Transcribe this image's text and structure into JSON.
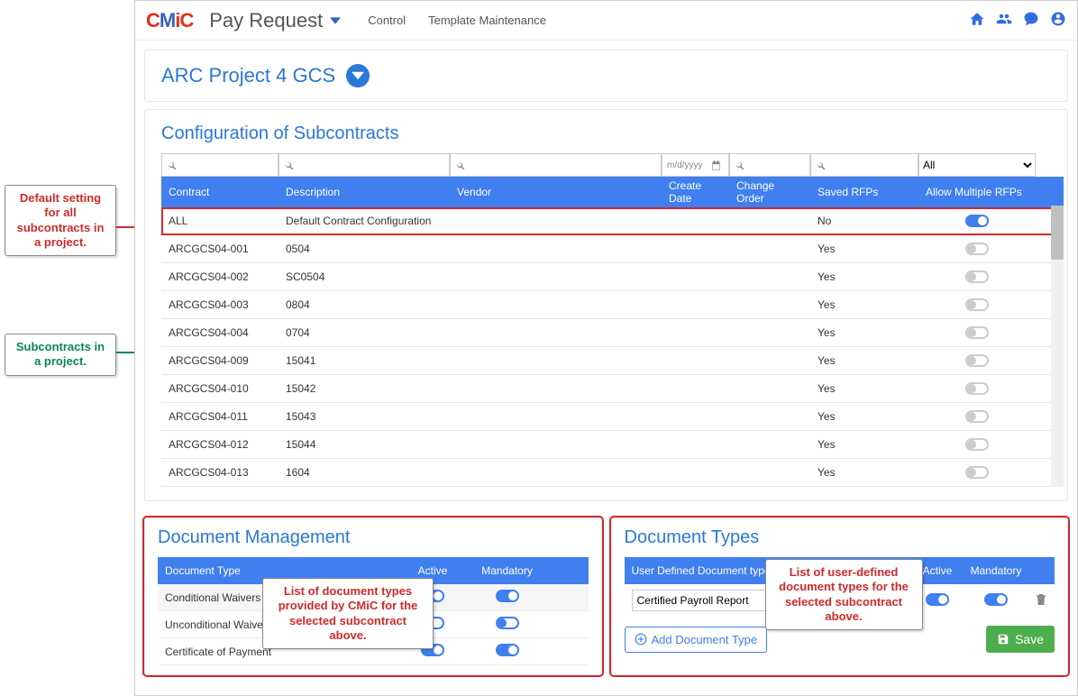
{
  "header": {
    "logo": "CMiC",
    "title": "Pay Request",
    "nav": {
      "control": "Control",
      "template": "Template Maintenance"
    }
  },
  "project": {
    "name": "ARC Project 4 GCS"
  },
  "config": {
    "title": "Configuration of Subcontracts",
    "columns": {
      "contract": "Contract",
      "description": "Description",
      "vendor": "Vendor",
      "createDate": "Create Date",
      "changeOrder": "Change Order",
      "savedRfps": "Saved RFPs",
      "allowMultiple": "Allow Multiple RFPs"
    },
    "datePlaceholder": "m/d/yyyy",
    "filterAll": "All",
    "rows": [
      {
        "contract": "ALL",
        "description": "Default Contract Configuration",
        "vendor": "",
        "createDate": "",
        "changeOrder": "",
        "savedRfps": "No",
        "allowMultiple": true,
        "highlight": true
      },
      {
        "contract": "ARCGCS04-001",
        "description": "0504",
        "vendor": "",
        "createDate": "",
        "changeOrder": "",
        "savedRfps": "Yes",
        "allowMultiple": false
      },
      {
        "contract": "ARCGCS04-002",
        "description": "SC0504",
        "vendor": "",
        "createDate": "",
        "changeOrder": "",
        "savedRfps": "Yes",
        "allowMultiple": false
      },
      {
        "contract": "ARCGCS04-003",
        "description": "0804",
        "vendor": "",
        "createDate": "",
        "changeOrder": "",
        "savedRfps": "Yes",
        "allowMultiple": false
      },
      {
        "contract": "ARCGCS04-004",
        "description": "0704",
        "vendor": "",
        "createDate": "",
        "changeOrder": "",
        "savedRfps": "Yes",
        "allowMultiple": false
      },
      {
        "contract": "ARCGCS04-009",
        "description": "15041",
        "vendor": "",
        "createDate": "",
        "changeOrder": "",
        "savedRfps": "Yes",
        "allowMultiple": false
      },
      {
        "contract": "ARCGCS04-010",
        "description": "15042",
        "vendor": "",
        "createDate": "",
        "changeOrder": "",
        "savedRfps": "Yes",
        "allowMultiple": false
      },
      {
        "contract": "ARCGCS04-011",
        "description": "15043",
        "vendor": "",
        "createDate": "",
        "changeOrder": "",
        "savedRfps": "Yes",
        "allowMultiple": false
      },
      {
        "contract": "ARCGCS04-012",
        "description": "15044",
        "vendor": "",
        "createDate": "",
        "changeOrder": "",
        "savedRfps": "Yes",
        "allowMultiple": false
      },
      {
        "contract": "ARCGCS04-013",
        "description": "1604",
        "vendor": "",
        "createDate": "",
        "changeOrder": "",
        "savedRfps": "Yes",
        "allowMultiple": false
      }
    ]
  },
  "docMgmt": {
    "title": "Document Management",
    "columns": {
      "type": "Document Type",
      "active": "Active",
      "mandatory": "Mandatory"
    },
    "rows": [
      {
        "type": "Conditional Waivers",
        "active": true,
        "mandatory": true,
        "alt": true
      },
      {
        "type": "Unconditional Waivers",
        "active": false,
        "mandatory": false
      },
      {
        "type": "Certificate of Payment",
        "active": true,
        "mandatory": true
      }
    ]
  },
  "docTypes": {
    "title": "Document Types",
    "columns": {
      "type": "User Defined Document type",
      "active": "Active",
      "mandatory": "Mandatory"
    },
    "input": "Certified Payroll Report",
    "addBtn": "Add Document Type",
    "saveBtn": "Save"
  },
  "callouts": {
    "defaultSetting": "Default setting for all subcontracts in a project.",
    "subcontracts": "Subcontracts in a project.",
    "docList": "List of document types provided by CMiC for the selected subcontract above.",
    "userList": "List of user-defined document types for the selected subcontract above."
  },
  "colors": {
    "blue": "#3f7ff0",
    "red": "#d12a2a",
    "green": "#0a8557"
  }
}
